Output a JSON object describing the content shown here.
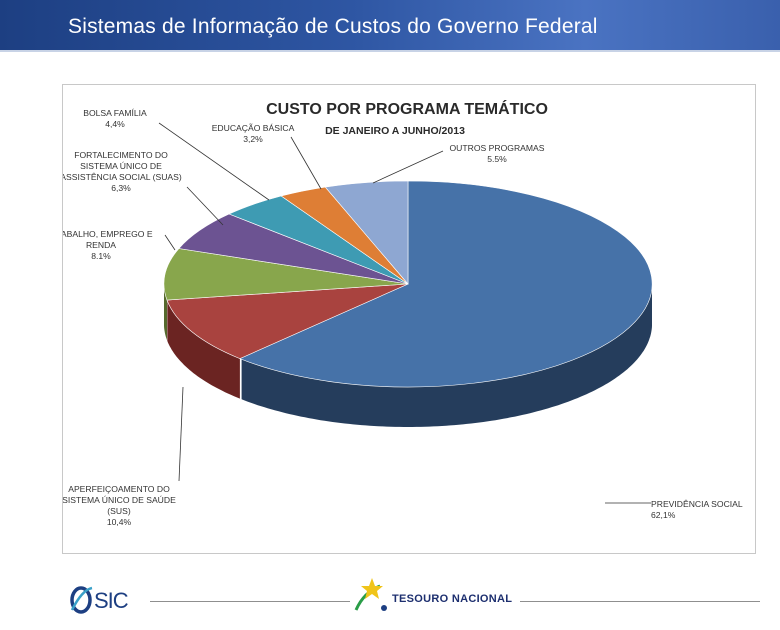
{
  "header": {
    "title": "Sistemas de Informação de Custos do Governo Federal"
  },
  "chart_data": {
    "type": "pie",
    "title": "CUSTO POR PROGRAMA TEMÁTICO",
    "subtitle": "DE JANEIRO A JUNHO/2013",
    "slices": [
      {
        "name": "PREVIDÊNCIA SOCIAL",
        "label_lines": [
          "PREVIDÊNCIA SOCIAL"
        ],
        "value": 62.1,
        "value_label": "62,1%",
        "color": "#4672a8",
        "side_color": "#253d5c"
      },
      {
        "name": "APERFEIÇOAMENTO DO SISTEMA ÚNICO DE SAÚDE (SUS)",
        "label_lines": [
          "APERFEIÇOAMENTO DO",
          "SISTEMA ÚNICO DE SAÚDE",
          "(SUS)"
        ],
        "value": 10.4,
        "value_label": "10,4%",
        "color": "#a9433f",
        "side_color": "#6b2422"
      },
      {
        "name": "TRABALHO, EMPREGO E RENDA",
        "label_lines": [
          "TRABALHO, EMPREGO E",
          "RENDA"
        ],
        "value": 8.1,
        "value_label": "8.1%",
        "color": "#88a64c",
        "side_color": "#55692d"
      },
      {
        "name": "FORTALECIMENTO DO SISTEMA ÚNICO DE ASSISTÊNCIA SOCIAL (SUAS)",
        "label_lines": [
          "FORTALECIMENTO DO",
          "SISTEMA ÚNICO DE",
          "ASSISTÊNCIA SOCIAL (SUAS)"
        ],
        "value": 6.3,
        "value_label": "6,3%",
        "color": "#6c5392",
        "side_color": "#41305a"
      },
      {
        "name": "BOLSA FAMÍLIA",
        "label_lines": [
          "BOLSA FAMÍLIA"
        ],
        "value": 4.4,
        "value_label": "4,4%",
        "color": "#3e9bb3",
        "side_color": "#225f6f"
      },
      {
        "name": "EDUCAÇÃO BÁSICA",
        "label_lines": [
          "EDUCAÇÃO BÁSICA"
        ],
        "value": 3.2,
        "value_label": "3,2%",
        "color": "#de7e35",
        "side_color": "#8f4d1c"
      },
      {
        "name": "OUTROS PROGRAMAS",
        "label_lines": [
          "OUTROS PROGRAMAS"
        ],
        "value": 5.5,
        "value_label": "5.5%",
        "color": "#8ea7d2",
        "side_color": "#5c7297"
      }
    ]
  },
  "footer": {
    "sic_logo_text": "SIC",
    "tesouro_logo_text": "TESOURO NACIONAL"
  }
}
